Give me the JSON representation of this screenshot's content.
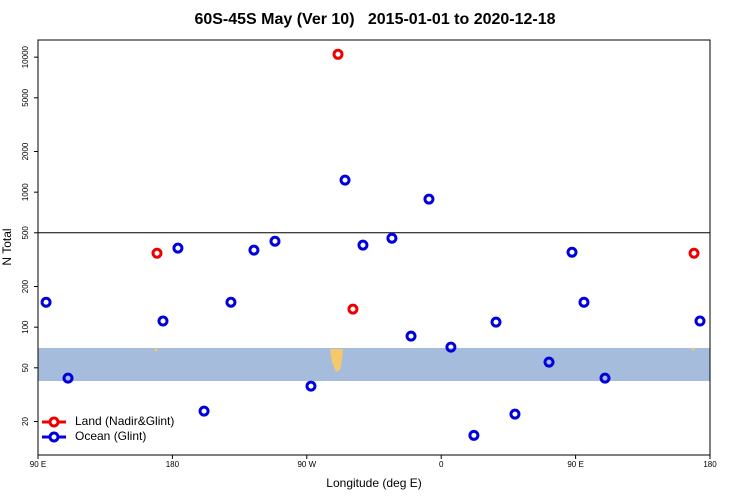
{
  "chart_data": {
    "type": "scatter",
    "title": "60S-45S May (Ver 10)   2015-01-01 to 2020-12-18",
    "x_label": "Longitude (deg E)",
    "y_label": "N Total",
    "xlim": [
      90,
      540
    ],
    "xticks": [
      {
        "value": 90,
        "label": "90 E"
      },
      180,
      {
        "value": 270,
        "label": "90 W"
      },
      {
        "value": 360,
        "label": "0"
      },
      {
        "value": 450,
        "label": "90 E"
      },
      {
        "value": 540,
        "label": "180"
      }
    ],
    "ylim": [
      11.3,
      13400
    ],
    "y_scale": "log",
    "yticks": [
      20,
      50,
      100,
      200,
      500,
      1000,
      2000,
      5000,
      10000
    ],
    "reference_line": 500,
    "legend": "bottom-left",
    "series": [
      {
        "name": "Land (Nadir&Glint)",
        "color": "#ee0000",
        "x": [
          290.9,
          169.7,
          300.9,
          529.3
        ],
        "values": [
          10500,
          353,
          136,
          353
        ]
      },
      {
        "name": "Ocean (Glint)",
        "color": "#0000dd",
        "x": [
          95.4,
          110.1,
          173.7,
          183.7,
          201.2,
          219.2,
          234.6,
          248.7,
          272.8,
          295.6,
          307.6,
          327.0,
          339.8,
          351.8,
          366.5,
          381.9,
          396.7,
          409.4,
          432.2,
          447.6,
          455.6,
          469.7,
          533.3
        ],
        "values": [
          153,
          41.9,
          111,
          385,
          23.9,
          153,
          372,
          433,
          36.6,
          1227,
          405,
          456,
          85.8,
          888,
          71.2,
          15.8,
          109,
          22.7,
          55.1,
          359,
          153,
          41.9,
          111
        ]
      }
    ]
  }
}
